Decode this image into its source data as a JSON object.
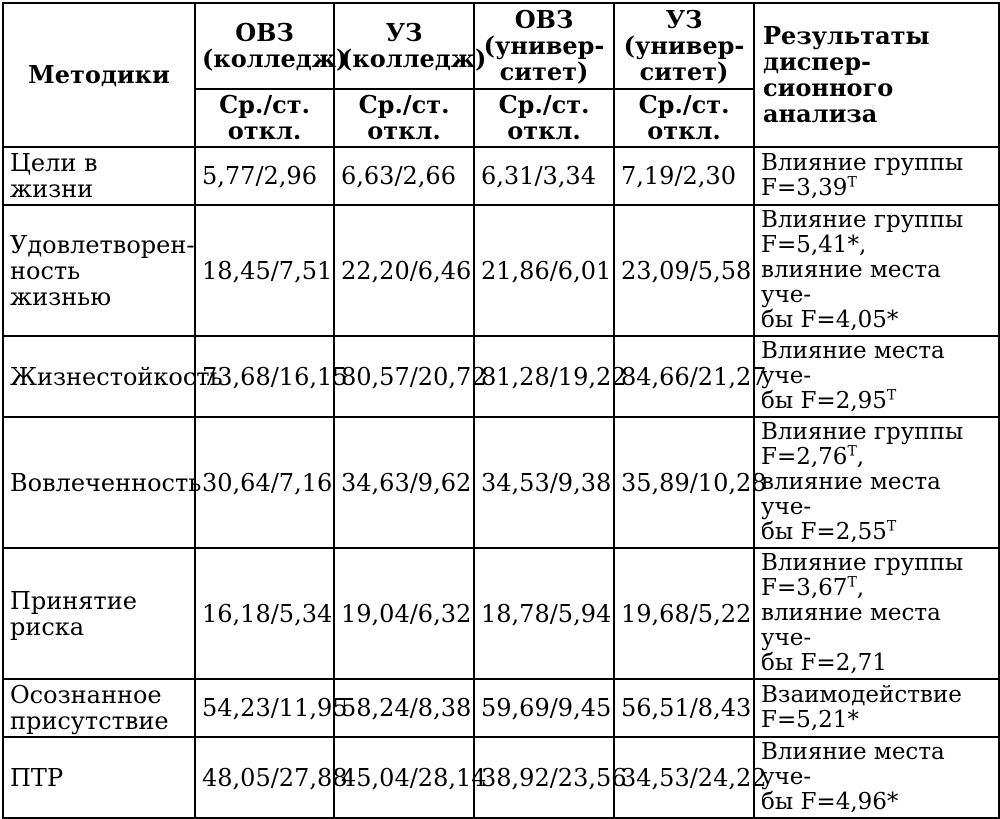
{
  "header": {
    "methods": "Методики",
    "col1": [
      "ОВЗ",
      "(колледж)"
    ],
    "col2": [
      "УЗ",
      "(колледж)"
    ],
    "col3": [
      "ОВЗ",
      "(универ-",
      "ситет)"
    ],
    "col4": [
      "УЗ",
      "(универ-",
      "ситет)"
    ],
    "sub": [
      "Ср./ст.",
      "откл."
    ],
    "results": [
      "Результаты диспер-",
      "сионного анализа"
    ]
  },
  "rows": [
    {
      "method": [
        "Цели в жизни"
      ],
      "values": [
        "5,77/2,96",
        "6,63/2,66",
        "6,31/3,34",
        "7,19/2,30"
      ],
      "result": [
        [
          "Влияние группы",
          ""
        ],
        [
          "F=3,39",
          "Т"
        ]
      ]
    },
    {
      "method": [
        "Удовлетворен-",
        "ность жизнью"
      ],
      "values": [
        "18,45/7,51",
        "22,20/6,46",
        "21,86/6,01",
        "23,09/5,58"
      ],
      "result": [
        [
          "Влияние группы",
          ""
        ],
        [
          "F=5,41*,",
          ""
        ],
        [
          "влияние места уче-",
          ""
        ],
        [
          "бы F=4,05*",
          ""
        ]
      ]
    },
    {
      "method": [
        "Жизнестойкость"
      ],
      "values": [
        "73,68/16,15",
        "80,57/20,72",
        "81,28/19,22",
        "84,66/21,27"
      ],
      "result": [
        [
          "Влияние места уче-",
          ""
        ],
        [
          "бы F=2,95",
          "Т"
        ]
      ]
    },
    {
      "method": [
        "Вовлеченность"
      ],
      "values": [
        "30,64/7,16",
        "34,63/9,62",
        "34,53/9,38",
        "35,89/10,28"
      ],
      "result": [
        [
          "Влияние группы",
          ""
        ],
        [
          "F=2,76",
          "Т",
          ","
        ],
        [
          "влияние места уче-",
          ""
        ],
        [
          "бы F=2,55",
          "Т"
        ]
      ]
    },
    {
      "method": [
        "Принятие риска"
      ],
      "values": [
        "16,18/5,34",
        "19,04/6,32",
        "18,78/5,94",
        "19,68/5,22"
      ],
      "result": [
        [
          "Влияние группы",
          ""
        ],
        [
          "F=3,67",
          "Т",
          ","
        ],
        [
          "влияние места уче-",
          ""
        ],
        [
          "бы F=2,71",
          ""
        ]
      ]
    },
    {
      "method": [
        "Осознанное",
        "присутствие"
      ],
      "values": [
        "54,23/11,95",
        "58,24/8,38",
        "59,69/9,45",
        "56,51/8,43"
      ],
      "result": [
        [
          "Взаимодействие",
          ""
        ],
        [
          "F=5,21*",
          ""
        ]
      ]
    },
    {
      "method": [
        "ПТР"
      ],
      "values": [
        "48,05/27,88",
        "45,04/28,14",
        "38,92/23,56",
        "34,53/24,22"
      ],
      "result": [
        [
          "Влияние места уче-",
          ""
        ],
        [
          "бы F=4,96*",
          ""
        ]
      ]
    }
  ]
}
